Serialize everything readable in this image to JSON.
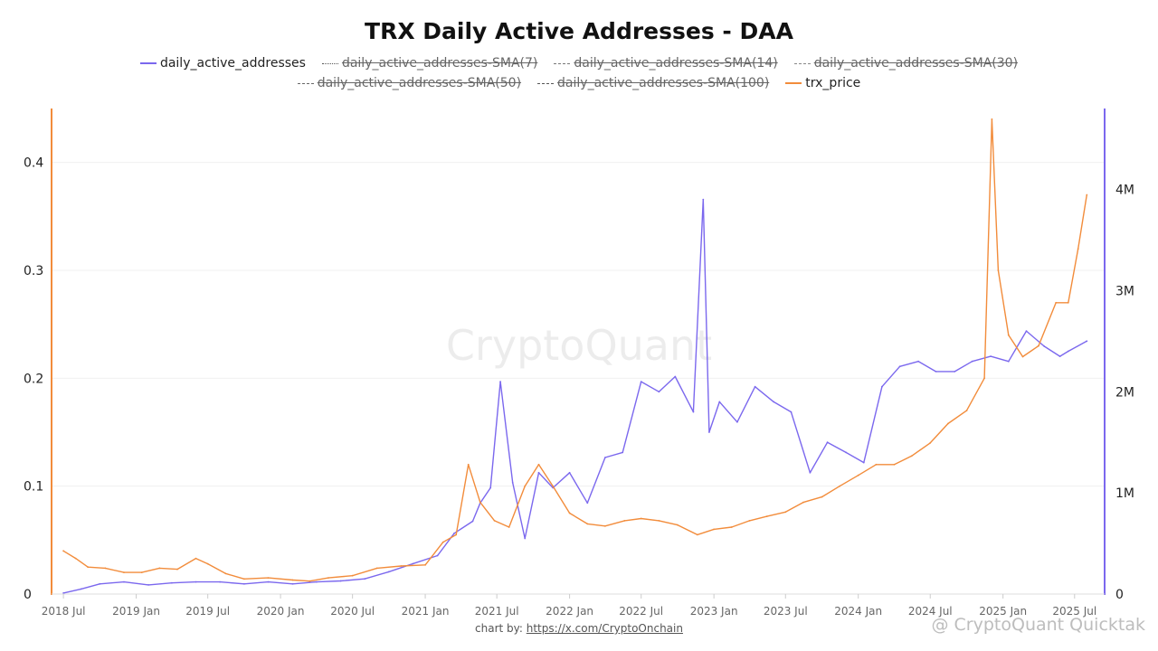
{
  "chart_data": {
    "type": "line",
    "title": "TRX Daily Active Addresses - DAA",
    "x_ticks": [
      "2018 Jul",
      "2019 Jan",
      "2019 Jul",
      "2020 Jan",
      "2020 Jul",
      "2021 Jan",
      "2021 Jul",
      "2022 Jan",
      "2022 Jul",
      "2023 Jan",
      "2023 Jul",
      "2024 Jan",
      "2024 Jul",
      "2025 Jan",
      "2025 Jul"
    ],
    "y_left_ticks": [
      "0",
      "0.1",
      "0.2",
      "0.3",
      "0.4"
    ],
    "y_right_ticks": [
      "0",
      "1M",
      "2M",
      "3M",
      "4M"
    ],
    "y_left_range": [
      0,
      0.45
    ],
    "y_right_range": [
      0,
      4.8
    ],
    "legend_placement": "top-center",
    "grid": true,
    "series": [
      {
        "name": "daily_active_addresses",
        "axis": "right",
        "unit": "millions",
        "color": "#7b68ee",
        "visible": true,
        "x": [
          "2018-07-01",
          "2018-08-15",
          "2018-10-01",
          "2018-12-01",
          "2019-02-01",
          "2019-04-01",
          "2019-06-01",
          "2019-08-01",
          "2019-10-01",
          "2019-12-01",
          "2020-02-01",
          "2020-04-01",
          "2020-06-01",
          "2020-08-01",
          "2020-10-01",
          "2020-12-01",
          "2021-02-01",
          "2021-03-15",
          "2021-05-01",
          "2021-05-20",
          "2021-06-15",
          "2021-07-10",
          "2021-08-10",
          "2021-09-10",
          "2021-10-15",
          "2021-11-20",
          "2022-01-01",
          "2022-02-15",
          "2022-04-01",
          "2022-05-15",
          "2022-07-01",
          "2022-08-15",
          "2022-09-25",
          "2022-11-10",
          "2022-12-05",
          "2022-12-20",
          "2023-01-15",
          "2023-03-01",
          "2023-04-15",
          "2023-06-01",
          "2023-07-15",
          "2023-09-01",
          "2023-10-15",
          "2023-12-01",
          "2024-01-15",
          "2024-03-01",
          "2024-04-15",
          "2024-06-01",
          "2024-07-15",
          "2024-09-01",
          "2024-10-15",
          "2024-12-01",
          "2025-01-15",
          "2025-03-01",
          "2025-04-15",
          "2025-05-25",
          "2025-06-15",
          "2025-08-01"
        ],
        "values": [
          0.01,
          0.05,
          0.1,
          0.12,
          0.09,
          0.11,
          0.12,
          0.12,
          0.1,
          0.12,
          0.1,
          0.12,
          0.13,
          0.15,
          0.22,
          0.3,
          0.38,
          0.6,
          0.72,
          0.9,
          1.05,
          2.1,
          1.1,
          0.55,
          1.2,
          1.05,
          1.2,
          0.9,
          1.35,
          1.4,
          2.1,
          2.0,
          2.15,
          1.8,
          3.9,
          1.6,
          1.9,
          1.7,
          2.05,
          1.9,
          1.8,
          1.2,
          1.5,
          1.4,
          1.3,
          2.05,
          2.25,
          2.3,
          2.2,
          2.2,
          2.3,
          2.35,
          2.3,
          2.6,
          2.45,
          2.35,
          2.4,
          2.5
        ]
      },
      {
        "name": "daily_active_addresses-SMA(7)",
        "axis": "right",
        "color": "#555555",
        "visible": false
      },
      {
        "name": "daily_active_addresses-SMA(14)",
        "axis": "right",
        "color": "#777777",
        "visible": false
      },
      {
        "name": "daily_active_addresses-SMA(30)",
        "axis": "right",
        "color": "#888888",
        "visible": false
      },
      {
        "name": "daily_active_addresses-SMA(50)",
        "axis": "right",
        "color": "#666666",
        "visible": false
      },
      {
        "name": "daily_active_addresses-SMA(100)",
        "axis": "right",
        "color": "#555555",
        "visible": false
      },
      {
        "name": "trx_price",
        "axis": "left",
        "color": "#f28c3b",
        "visible": true,
        "x": [
          "2018-07-01",
          "2018-08-01",
          "2018-09-01",
          "2018-10-15",
          "2018-12-01",
          "2019-01-15",
          "2019-03-01",
          "2019-04-15",
          "2019-06-01",
          "2019-07-01",
          "2019-08-15",
          "2019-10-01",
          "2019-12-01",
          "2020-02-01",
          "2020-03-15",
          "2020-05-01",
          "2020-07-01",
          "2020-09-01",
          "2020-11-01",
          "2021-01-01",
          "2021-02-15",
          "2021-03-20",
          "2021-04-20",
          "2021-05-20",
          "2021-06-25",
          "2021-08-01",
          "2021-09-10",
          "2021-10-15",
          "2021-11-20",
          "2022-01-01",
          "2022-02-15",
          "2022-04-01",
          "2022-05-20",
          "2022-07-01",
          "2022-08-15",
          "2022-10-01",
          "2022-11-20",
          "2023-01-01",
          "2023-02-15",
          "2023-04-01",
          "2023-05-15",
          "2023-07-01",
          "2023-08-15",
          "2023-10-01",
          "2023-11-15",
          "2024-01-01",
          "2024-02-15",
          "2024-04-01",
          "2024-05-15",
          "2024-07-01",
          "2024-08-15",
          "2024-10-01",
          "2024-11-15",
          "2024-12-04",
          "2024-12-20",
          "2025-01-15",
          "2025-02-20",
          "2025-04-01",
          "2025-05-15",
          "2025-06-15",
          "2025-07-10",
          "2025-08-01"
        ],
        "values": [
          0.04,
          0.033,
          0.025,
          0.024,
          0.02,
          0.02,
          0.024,
          0.023,
          0.033,
          0.028,
          0.019,
          0.014,
          0.015,
          0.013,
          0.012,
          0.015,
          0.017,
          0.024,
          0.026,
          0.027,
          0.048,
          0.055,
          0.12,
          0.085,
          0.068,
          0.062,
          0.1,
          0.12,
          0.1,
          0.075,
          0.065,
          0.063,
          0.068,
          0.07,
          0.068,
          0.064,
          0.055,
          0.06,
          0.062,
          0.068,
          0.072,
          0.076,
          0.085,
          0.09,
          0.1,
          0.11,
          0.12,
          0.12,
          0.128,
          0.14,
          0.158,
          0.17,
          0.2,
          0.44,
          0.3,
          0.24,
          0.22,
          0.23,
          0.27,
          0.27,
          0.32,
          0.37
        ]
      }
    ]
  },
  "footer": {
    "prefix": "chart by: ",
    "link": "https://x.com/CryptoOnchain"
  },
  "watermarks": {
    "center": "CryptoQuant",
    "corner": "@ CryptoQuant Quicktak"
  }
}
